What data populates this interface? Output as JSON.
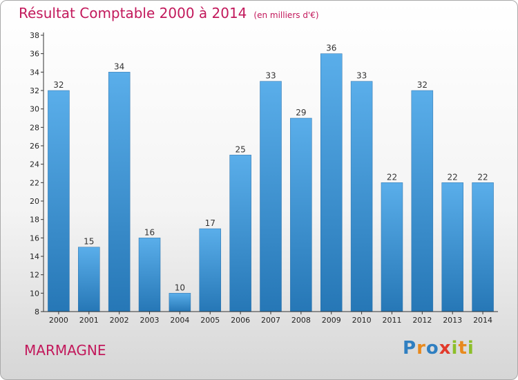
{
  "chart_data": {
    "type": "bar",
    "title": "Résultat Comptable 2000 à 2014",
    "subtitle": "(en milliers d'€)",
    "categories": [
      "2000",
      "2001",
      "2002",
      "2003",
      "2004",
      "2005",
      "2006",
      "2007",
      "2008",
      "2009",
      "2010",
      "2011",
      "2012",
      "2013",
      "2014"
    ],
    "values": [
      32,
      15,
      34,
      16,
      10,
      17,
      25,
      33,
      29,
      36,
      33,
      22,
      32,
      22,
      22
    ],
    "ylim": [
      8,
      38
    ],
    "ytick_step": 2,
    "grid": false,
    "bar_color_top": "#5aaeea",
    "bar_color_bottom": "#2677b6"
  },
  "footer": {
    "city": "MARMAGNE"
  },
  "logo": {
    "letters": [
      {
        "ch": "P",
        "color": "#2f7fc1"
      },
      {
        "ch": "r",
        "color": "#e8891d"
      },
      {
        "ch": "o",
        "color": "#2f7fc1"
      },
      {
        "ch": "x",
        "color": "#e23a2b"
      },
      {
        "ch": "i",
        "color": "#8cbf2a"
      },
      {
        "ch": "t",
        "color": "#e8891d"
      },
      {
        "ch": "i",
        "color": "#8cbf2a"
      }
    ]
  },
  "colors": {
    "accent": "#c2185b",
    "axis": "#333333"
  }
}
